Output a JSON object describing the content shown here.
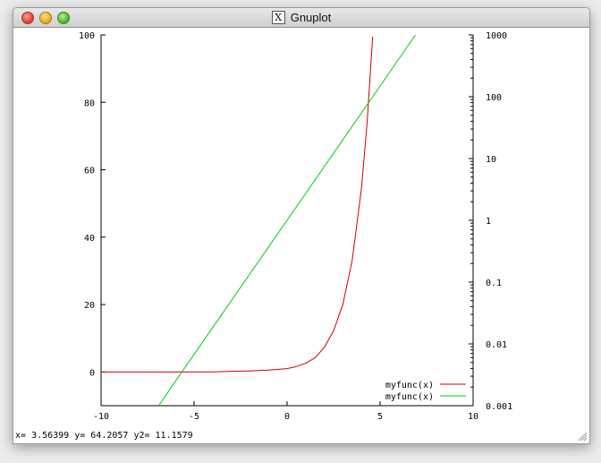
{
  "window": {
    "title": "Gnuplot",
    "icon": "x11-icon"
  },
  "status": {
    "text": "x= 3.56399 y= 64.2057 y2= 11.1579"
  },
  "colors": {
    "series1": "#cc0000",
    "series2": "#00cc00"
  },
  "chart_data": {
    "type": "line",
    "title": "",
    "xlabel": "",
    "ylabel": "",
    "y2label": "",
    "xlim": [
      -10,
      10
    ],
    "ylim": [
      -10,
      100
    ],
    "y2lim": [
      0.001,
      1000
    ],
    "y2scale": "log",
    "grid": false,
    "legend_position": "bottom-right",
    "x_ticks": [
      "-10",
      "-5",
      "0",
      "5",
      "10"
    ],
    "y_ticks": [
      "0",
      "20",
      "40",
      "60",
      "80",
      "100"
    ],
    "y2_ticks": [
      "0.001",
      "0.01",
      "0.1",
      "1",
      "10",
      "100",
      "1000"
    ],
    "series": [
      {
        "name": "myfunc(x)",
        "axis": "y",
        "color": "#cc0000",
        "points": [
          [
            -10,
            0.0
          ],
          [
            -8,
            0.0
          ],
          [
            -6,
            0.0
          ],
          [
            -4,
            0.05
          ],
          [
            -2,
            0.3
          ],
          [
            -1,
            0.55
          ],
          [
            0,
            1.0
          ],
          [
            0.5,
            1.6
          ],
          [
            1,
            2.6
          ],
          [
            1.5,
            4.2
          ],
          [
            2,
            7.3
          ],
          [
            2.5,
            12.2
          ],
          [
            3,
            20.1
          ],
          [
            3.5,
            33.1
          ],
          [
            4,
            54.6
          ],
          [
            4.3,
            73.7
          ],
          [
            4.6,
            99.5
          ]
        ]
      },
      {
        "name": "myfunc(x)",
        "axis": "y2",
        "color": "#00cc00",
        "points": [
          [
            -6.9,
            0.001
          ],
          [
            -5.75,
            0.0032
          ],
          [
            0,
            1.0
          ],
          [
            4.6,
            100
          ],
          [
            6.9,
            1000
          ]
        ]
      }
    ]
  }
}
